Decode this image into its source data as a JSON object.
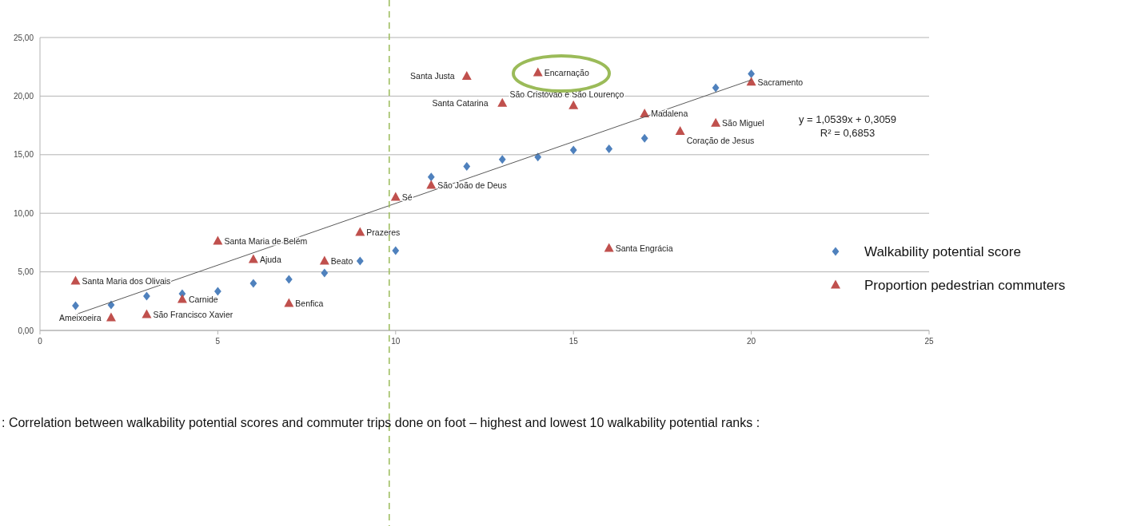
{
  "chart_data": {
    "type": "scatter",
    "x": [
      1,
      2,
      3,
      4,
      5,
      6,
      7,
      8,
      9,
      10,
      11,
      12,
      13,
      14,
      15,
      16,
      17,
      18,
      19,
      20
    ],
    "series": [
      {
        "name": "Walkability potential score",
        "color": "#4f81bd",
        "marker": "diamond",
        "values": [
          2.11,
          2.18,
          2.93,
          3.13,
          3.34,
          4.02,
          4.36,
          4.9,
          5.93,
          6.81,
          13.1,
          14.0,
          14.6,
          14.8,
          15.4,
          15.5,
          16.4,
          null,
          20.7,
          21.9
        ]
      },
      {
        "name": "Proportion pedestrian commuters",
        "color": "#c0504d",
        "marker": "triangle",
        "values": [
          4.22,
          1.09,
          1.36,
          2.66,
          7.63,
          6.06,
          2.32,
          5.93,
          8.38,
          11.38,
          12.4,
          21.7,
          19.4,
          22.0,
          19.2,
          7.02,
          18.5,
          17.0,
          17.7,
          21.2
        ]
      },
      {
        "type": "line",
        "color": "#595959",
        "marker": "none",
        "x": [
          1,
          20
        ],
        "values": [
          1.36,
          21.38
        ]
      }
    ],
    "xlim": [
      0,
      25
    ],
    "xticks": [
      0,
      5,
      10,
      15,
      20,
      25
    ],
    "ylim": [
      0,
      25
    ],
    "yticks": [
      {
        "value": 0,
        "label": "0,00"
      },
      {
        "value": 5,
        "label": "5,00"
      },
      {
        "value": 10,
        "label": "10,00"
      },
      {
        "value": 15,
        "label": "15,00"
      },
      {
        "value": 20,
        "label": "20,00"
      },
      {
        "value": 25,
        "label": "25,00"
      }
    ],
    "grid": "y",
    "legend": "right",
    "ref_lines": [
      {
        "axis": "x",
        "value": 9.82,
        "color": "#9bbb59",
        "line_style": "dashed"
      }
    ],
    "annotations": [
      {
        "text": "Santa Maria dos Olivais",
        "x": 1,
        "y": 4.22
      },
      {
        "text": "Ameixoeira",
        "x": 2,
        "y": 1.09
      },
      {
        "text": "São Francisco Xavier",
        "x": 3,
        "y": 1.36
      },
      {
        "text": "Carnide",
        "x": 4,
        "y": 2.66
      },
      {
        "text": "Santa Maria de Belém",
        "x": 5,
        "y": 7.63
      },
      {
        "text": "Ajuda",
        "x": 6,
        "y": 6.06
      },
      {
        "text": "Benfica",
        "x": 7,
        "y": 2.32
      },
      {
        "text": "Beato",
        "x": 8,
        "y": 5.93
      },
      {
        "text": "Prazeres",
        "x": 9,
        "y": 8.38
      },
      {
        "text": "Sé",
        "x": 10,
        "y": 11.38
      },
      {
        "text": "São João de Deus",
        "x": 11,
        "y": 12.4
      },
      {
        "text": "Santa Justa",
        "x": 12,
        "y": 21.7
      },
      {
        "text": "Santa Catarina",
        "x": 13,
        "y": 19.4
      },
      {
        "text": "Encarnação",
        "x": 14,
        "y": 22.0
      },
      {
        "text": "São Cristóvão e São Lourenço",
        "x": 15,
        "y": 19.2
      },
      {
        "text": "Santa Engrácia",
        "x": 16,
        "y": 7.02
      },
      {
        "text": "Madalena",
        "x": 17,
        "y": 18.5
      },
      {
        "text": "Coração de Jesus",
        "x": 18,
        "y": 17.0
      },
      {
        "text": "São Miguel",
        "x": 19,
        "y": 17.7
      },
      {
        "text": "Sacramento",
        "x": 20,
        "y": 21.2
      },
      "y = 1,0539x + 0,3059",
      "R² = 0,6853",
      ": Correlation between walkability potential scores and commuter trips done on foot – highest and lowest 10 walkability potential ranks :"
    ]
  }
}
